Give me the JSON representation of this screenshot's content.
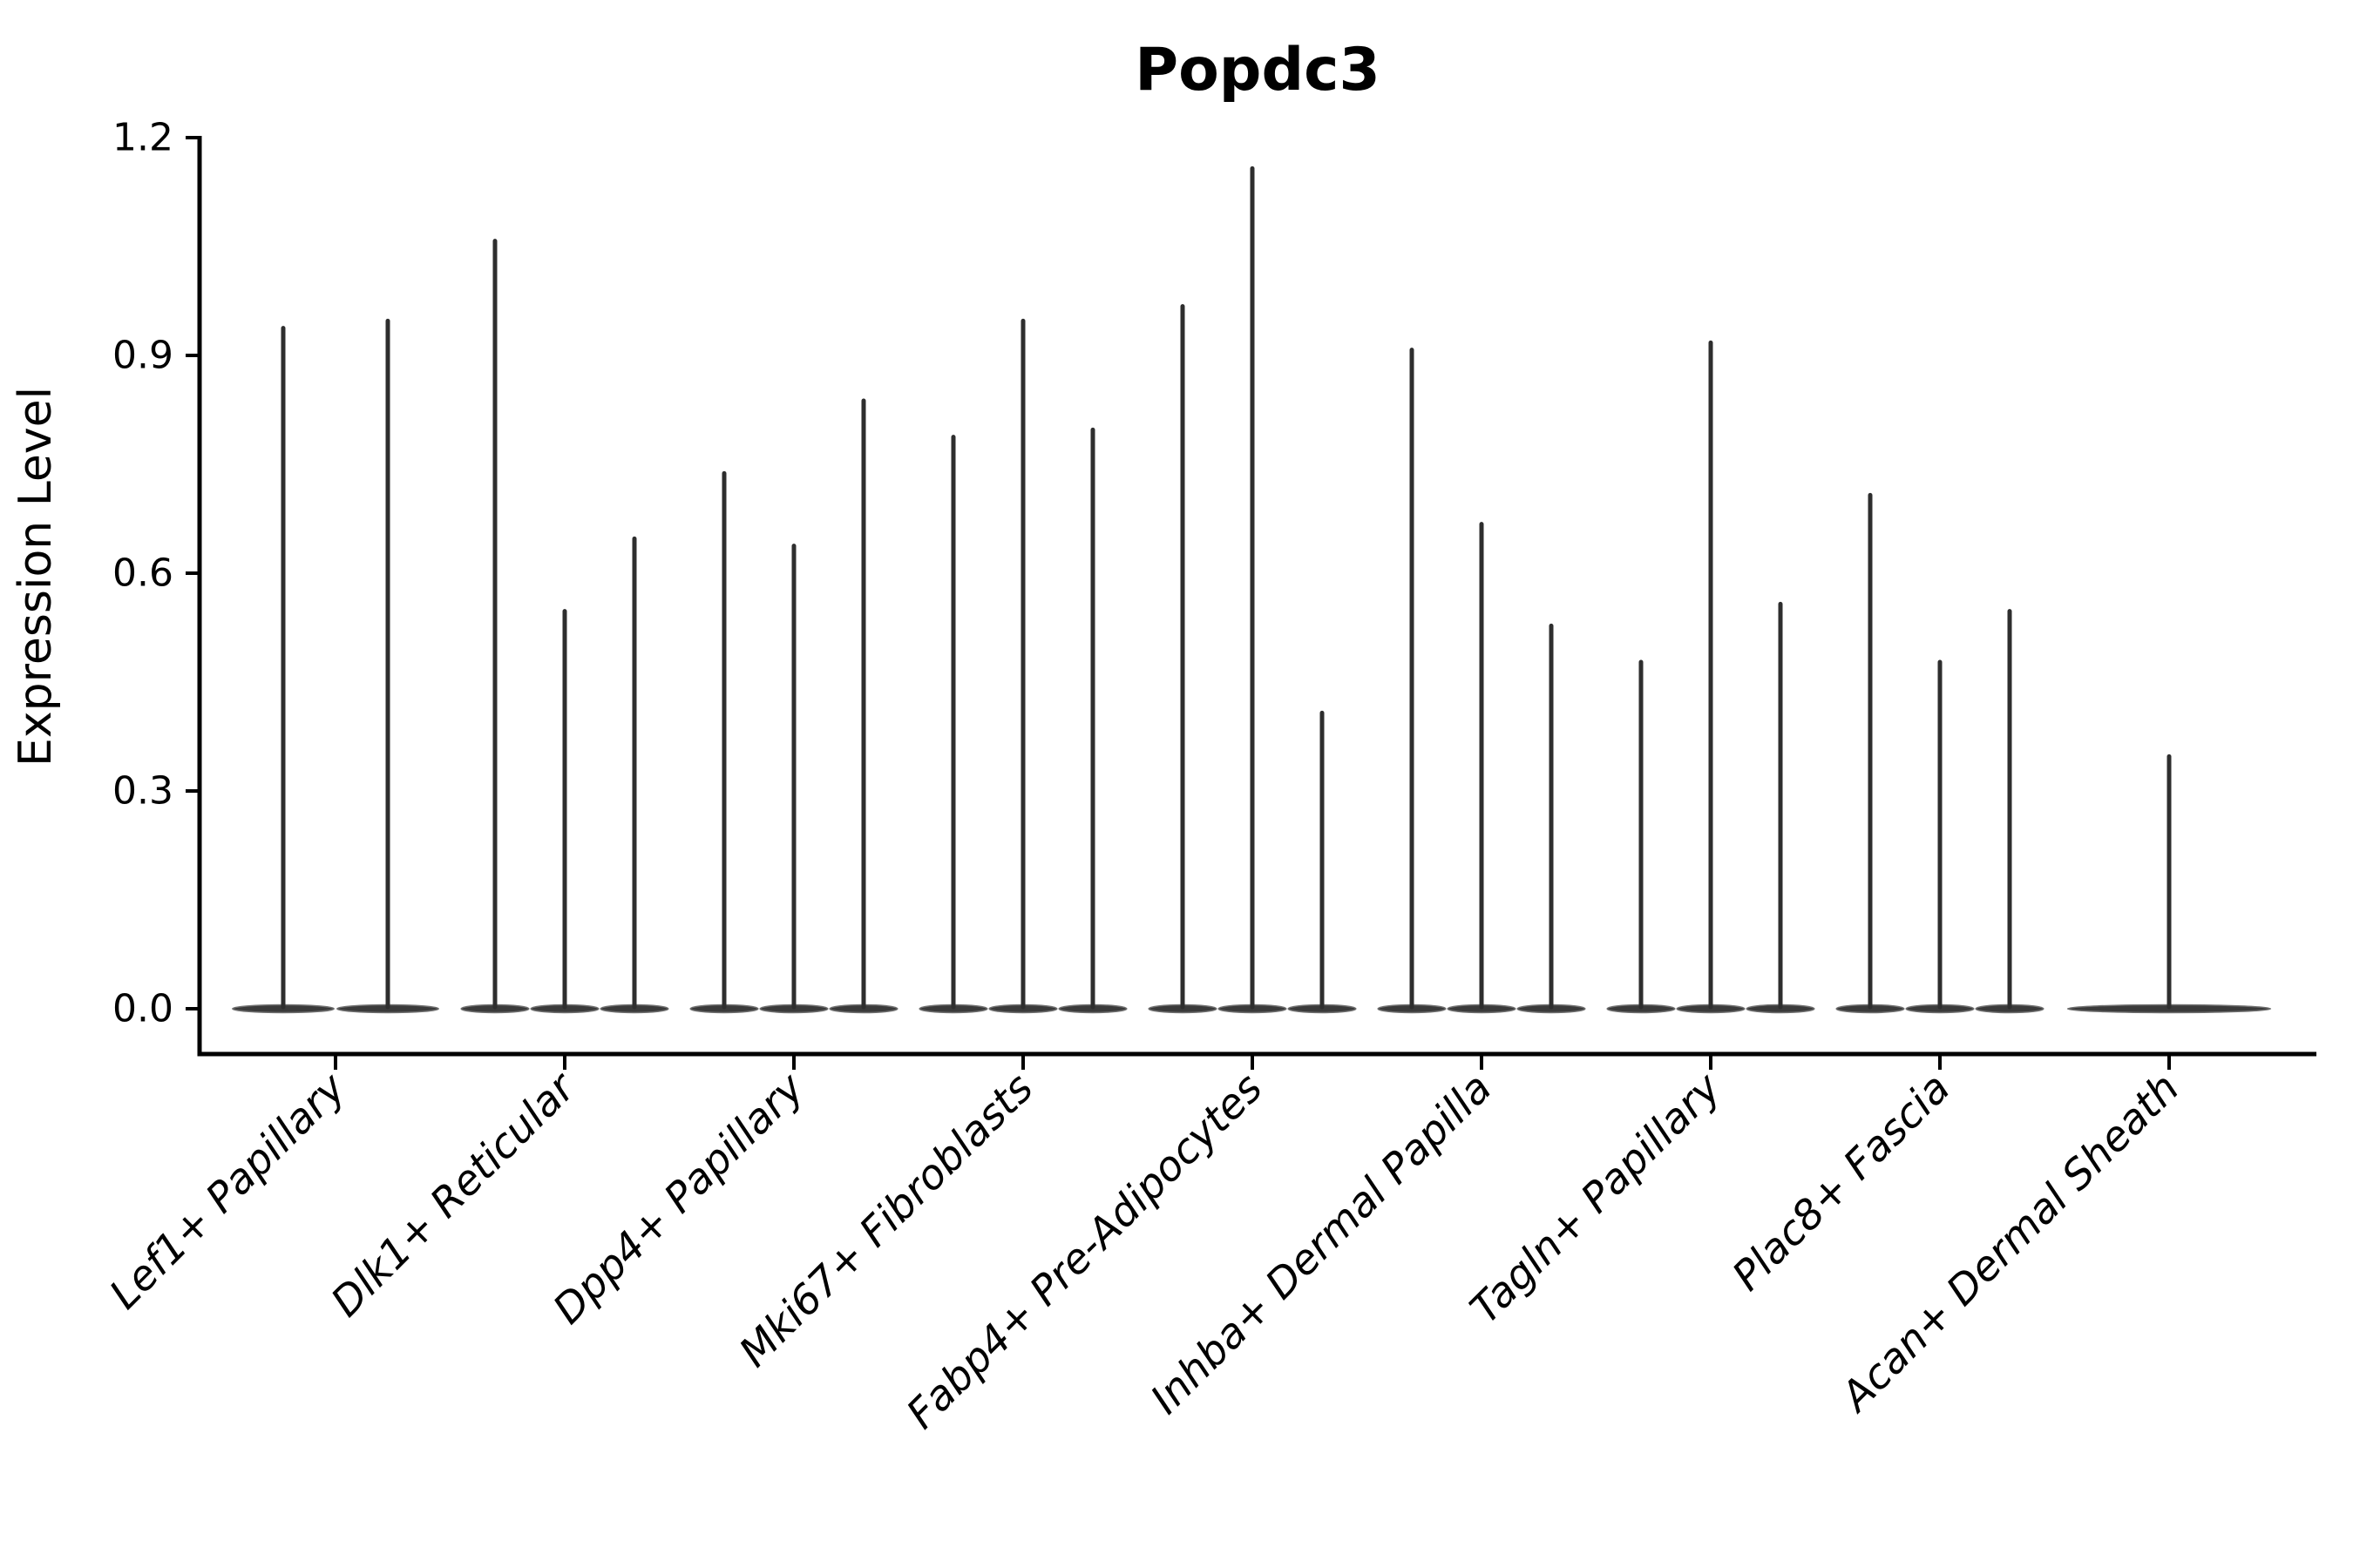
{
  "title": "Popdc3",
  "axes": {
    "ylabel": "Expression Level",
    "xlabel": ""
  },
  "colors": {
    "violin_line": "#2e2e2e",
    "violin_fill": "#3a3a3a",
    "violin_edge": "#6f6f6f",
    "axis": "#000000",
    "text": "#000000",
    "background": "#ffffff"
  },
  "chart_data": {
    "type": "violin",
    "title": "Popdc3",
    "ylabel": "Expression Level",
    "xlabel": "",
    "ylim": [
      0,
      1.2
    ],
    "yticks": [
      0,
      0.3,
      0.6,
      0.9,
      1.2
    ],
    "ytick_labels": [
      "0.0",
      "0.3",
      "0.6",
      "0.9",
      "1.2"
    ],
    "grid": false,
    "legend": "none",
    "x_tick_rotation": 45,
    "violin_style": "flat base lens at 0 with thin vertical spike up to max expression",
    "categories": [
      "Lef1+ Papillary",
      "Dlk1+ Reticular",
      "Dpp4+ Papillary",
      "Mki67+ Fibroblasts",
      "Fabp4+ Pre-Adipocytes",
      "Inhba+ Dermal Papilla",
      "Tagln+ Papillary",
      "Plac8+ Fascia",
      "Acan+ Dermal Sheath"
    ],
    "groups": [
      {
        "category": "Lef1+ Papillary",
        "violin_maxima": [
          0.94,
          0.95
        ]
      },
      {
        "category": "Dlk1+ Reticular",
        "violin_maxima": [
          1.06,
          0.55,
          0.65
        ]
      },
      {
        "category": "Dpp4+ Papillary",
        "violin_maxima": [
          0.74,
          0.64,
          0.84
        ]
      },
      {
        "category": "Mki67+ Fibroblasts",
        "violin_maxima": [
          0.79,
          0.95,
          0.8
        ]
      },
      {
        "category": "Fabp4+ Pre-Adipocytes",
        "violin_maxima": [
          0.97,
          1.16,
          0.41
        ]
      },
      {
        "category": "Inhba+ Dermal Papilla",
        "violin_maxima": [
          0.91,
          0.67,
          0.53
        ]
      },
      {
        "category": "Tagln+ Papillary",
        "violin_maxima": [
          0.48,
          0.92,
          0.56
        ]
      },
      {
        "category": "Plac8+ Fascia",
        "violin_maxima": [
          0.71,
          0.48,
          0.55
        ]
      },
      {
        "category": "Acan+ Dermal Sheath",
        "violin_maxima": [
          0.35
        ]
      }
    ]
  }
}
